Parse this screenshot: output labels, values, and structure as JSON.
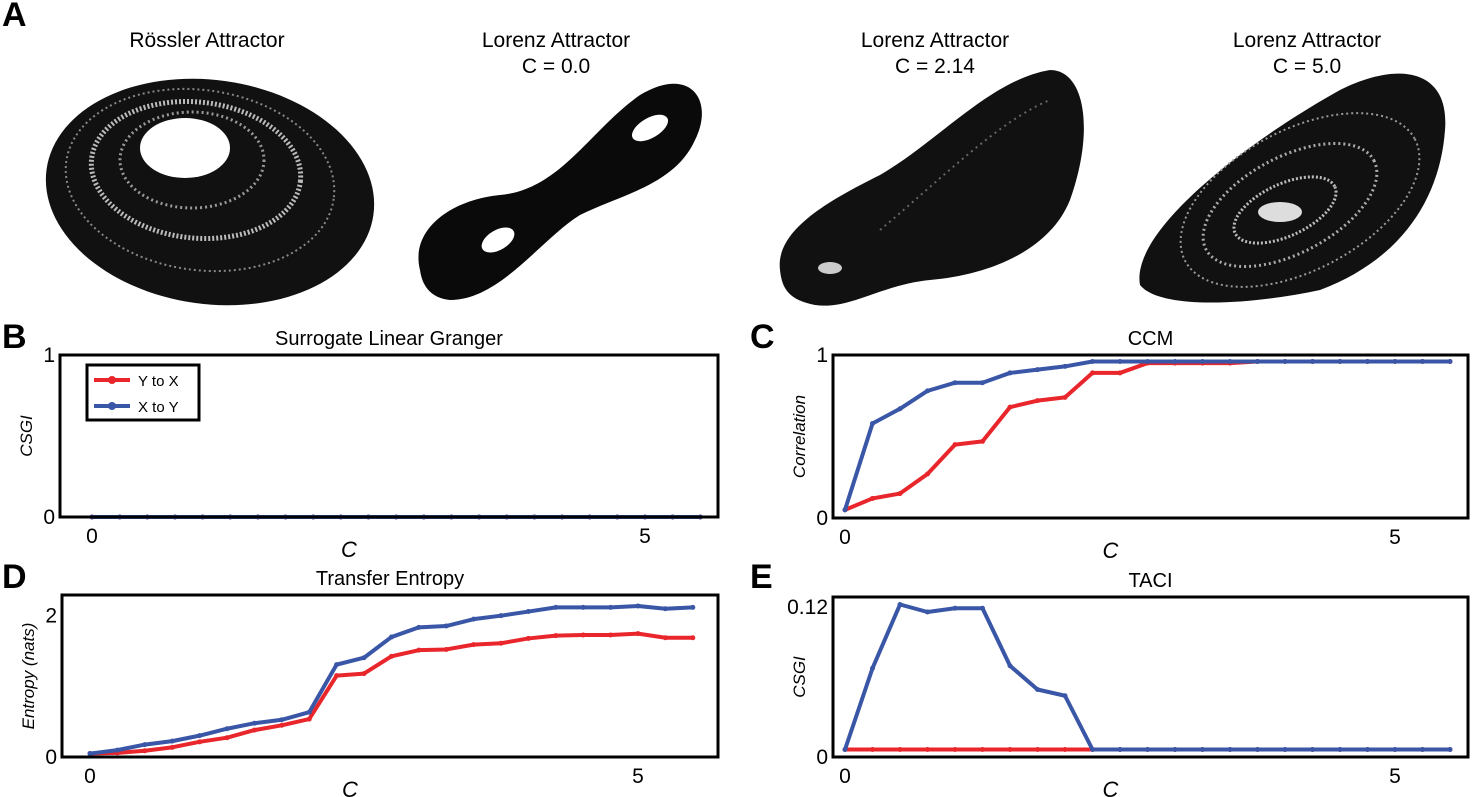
{
  "panel_labels": [
    "A",
    "B",
    "C",
    "D",
    "E"
  ],
  "attractors": [
    {
      "title": "Rössler Attractor",
      "subtitle": ""
    },
    {
      "title": "Lorenz Attractor",
      "subtitle": "C = 0.0"
    },
    {
      "title": "Lorenz Attractor",
      "subtitle": "C = 2.14"
    },
    {
      "title": "Lorenz Attractor",
      "subtitle": "C = 5.0"
    }
  ],
  "colors": {
    "y_to_x": "#e8262b",
    "x_to_y": "#3a56a6"
  },
  "chart_data": [
    {
      "id": "B",
      "type": "line",
      "title": "Surrogate Linear Granger",
      "xlabel": "C",
      "ylabel": "CSGI",
      "xlim": [
        0,
        5.5
      ],
      "ylim": [
        0,
        1
      ],
      "xticks": [
        "0",
        "5"
      ],
      "yticks": [
        "0",
        "1"
      ],
      "legend": "top-left",
      "x": [
        0,
        0.25,
        0.5,
        0.75,
        1,
        1.25,
        1.5,
        1.75,
        2,
        2.25,
        2.5,
        2.75,
        3,
        3.25,
        3.5,
        3.75,
        4,
        4.25,
        4.5,
        4.75,
        5,
        5.25,
        5.5
      ],
      "series": [
        {
          "name": "Y to X",
          "values": [
            0,
            0,
            0,
            0,
            0,
            0,
            0,
            0,
            0,
            0,
            0,
            0,
            0,
            0,
            0,
            0,
            0,
            0,
            0,
            0,
            0,
            0,
            0
          ]
        },
        {
          "name": "X to Y",
          "values": [
            0,
            0,
            0,
            0,
            0,
            0,
            0,
            0,
            0,
            0,
            0,
            0,
            0,
            0,
            0,
            0,
            0,
            0,
            0,
            0,
            0,
            0,
            0
          ]
        }
      ]
    },
    {
      "id": "C",
      "type": "line",
      "title": "CCM",
      "xlabel": "C",
      "ylabel": "Correlation",
      "xlim": [
        0,
        5.5
      ],
      "ylim": [
        0,
        1
      ],
      "xticks": [
        "0",
        "5"
      ],
      "yticks": [
        "0",
        "1"
      ],
      "x": [
        0,
        0.25,
        0.5,
        0.75,
        1,
        1.25,
        1.5,
        1.75,
        2,
        2.25,
        2.5,
        2.75,
        3,
        3.25,
        3.5,
        3.75,
        4,
        4.25,
        4.5,
        4.75,
        5,
        5.25,
        5.5
      ],
      "series": [
        {
          "name": "Y to X",
          "values": [
            0.05,
            0.12,
            0.15,
            0.27,
            0.45,
            0.47,
            0.68,
            0.72,
            0.74,
            0.89,
            0.89,
            0.95,
            0.95,
            0.95,
            0.95,
            0.96,
            0.96,
            0.96,
            0.96,
            0.96,
            0.96,
            0.96,
            0.96
          ]
        },
        {
          "name": "X to Y",
          "values": [
            0.05,
            0.58,
            0.67,
            0.78,
            0.83,
            0.83,
            0.89,
            0.91,
            0.93,
            0.96,
            0.96,
            0.96,
            0.96,
            0.96,
            0.96,
            0.96,
            0.96,
            0.96,
            0.96,
            0.96,
            0.96,
            0.96,
            0.96
          ]
        }
      ]
    },
    {
      "id": "D",
      "type": "line",
      "title": "Transfer Entropy",
      "xlabel": "C",
      "ylabel": "Entropy (nats)",
      "xlim": [
        0,
        5.5
      ],
      "ylim": [
        -0.05,
        2.3
      ],
      "xticks": [
        "0",
        "5"
      ],
      "yticks": [
        "0",
        "2"
      ],
      "x": [
        0,
        0.25,
        0.5,
        0.75,
        1,
        1.25,
        1.5,
        1.75,
        2,
        2.25,
        2.5,
        2.75,
        3,
        3.25,
        3.5,
        3.75,
        4,
        4.25,
        4.5,
        4.75,
        5,
        5.25,
        5.5
      ],
      "series": [
        {
          "name": "Y to X",
          "values": [
            0,
            0.01,
            0.04,
            0.09,
            0.17,
            0.23,
            0.34,
            0.41,
            0.5,
            1.13,
            1.16,
            1.41,
            1.5,
            1.51,
            1.58,
            1.6,
            1.67,
            1.71,
            1.72,
            1.72,
            1.74,
            1.68,
            1.68
          ]
        },
        {
          "name": "X to Y",
          "values": [
            0,
            0.05,
            0.13,
            0.18,
            0.26,
            0.36,
            0.44,
            0.49,
            0.6,
            1.29,
            1.39,
            1.69,
            1.83,
            1.85,
            1.95,
            2.0,
            2.06,
            2.12,
            2.12,
            2.12,
            2.14,
            2.1,
            2.12
          ]
        }
      ]
    },
    {
      "id": "E",
      "type": "line",
      "title": "TACI",
      "xlabel": "C",
      "ylabel": "CSGI",
      "xlim": [
        0,
        5.5
      ],
      "ylim": [
        0,
        0.128
      ],
      "xticks": [
        "0",
        "5"
      ],
      "yticks": [
        "0",
        "0.12"
      ],
      "x": [
        0,
        0.25,
        0.5,
        0.75,
        1,
        1.25,
        1.5,
        1.75,
        2,
        2.25,
        2.5,
        2.75,
        3,
        3.25,
        3.5,
        3.75,
        4,
        4.25,
        4.5,
        4.75,
        5,
        5.25,
        5.5
      ],
      "series": [
        {
          "name": "Y to X",
          "values": [
            0.006,
            0.006,
            0.006,
            0.006,
            0.006,
            0.006,
            0.006,
            0.006,
            0.006,
            0.006,
            0.006,
            0.006,
            0.006,
            0.006,
            0.006,
            0.006,
            0.006,
            0.006,
            0.006,
            0.006,
            0.006,
            0.006,
            0.006
          ]
        },
        {
          "name": "X to Y",
          "values": [
            0.006,
            0.071,
            0.122,
            0.116,
            0.119,
            0.119,
            0.073,
            0.054,
            0.049,
            0.006,
            0.006,
            0.006,
            0.006,
            0.006,
            0.006,
            0.006,
            0.006,
            0.006,
            0.006,
            0.006,
            0.006,
            0.006,
            0.006
          ]
        }
      ]
    }
  ]
}
